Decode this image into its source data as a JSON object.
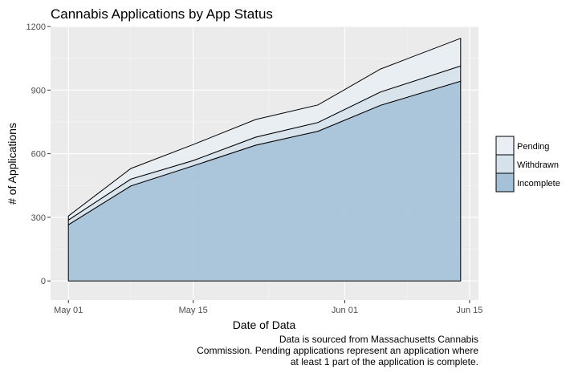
{
  "chart_data": {
    "type": "area",
    "title": "Cannabis Applications by App Status",
    "xlabel": "Date of Data",
    "ylabel": "# of Applications",
    "x_ticks": [
      {
        "date": "2018-05-01",
        "label": "May 01"
      },
      {
        "date": "2018-05-15",
        "label": "May 15"
      },
      {
        "date": "2018-06-01",
        "label": "Jun 01"
      },
      {
        "date": "2018-06-15",
        "label": "Jun 15"
      }
    ],
    "xlim": [
      "2018-04-29",
      "2018-06-16"
    ],
    "ylim": [
      -90,
      1200
    ],
    "y_ticks": [
      0,
      300,
      600,
      900,
      1200
    ],
    "grid": true,
    "legend_position": "right",
    "stacked": true,
    "x": [
      "2018-05-01",
      "2018-05-08",
      "2018-05-15",
      "2018-05-22",
      "2018-05-29",
      "2018-06-05",
      "2018-06-14"
    ],
    "series": [
      {
        "name": "Incomplete",
        "color": "#a5c1d8",
        "values": [
          265,
          448,
          543,
          640,
          706,
          828,
          942
        ]
      },
      {
        "name": "Withdrawn",
        "color": "#d6e2eb",
        "values": [
          22,
          32,
          25,
          38,
          41,
          63,
          72
        ]
      },
      {
        "name": "Pending",
        "color": "#e8eef3",
        "values": [
          19,
          50,
          75,
          83,
          83,
          108,
          130
        ]
      }
    ],
    "legend_order": [
      "Pending",
      "Withdrawn",
      "Incomplete"
    ],
    "caption_lines": [
      "Data is sourced from Massachusetts Cannabis",
      "Commission.  Pending applications represent an application where",
      "at least 1 part of the application is complete."
    ]
  }
}
